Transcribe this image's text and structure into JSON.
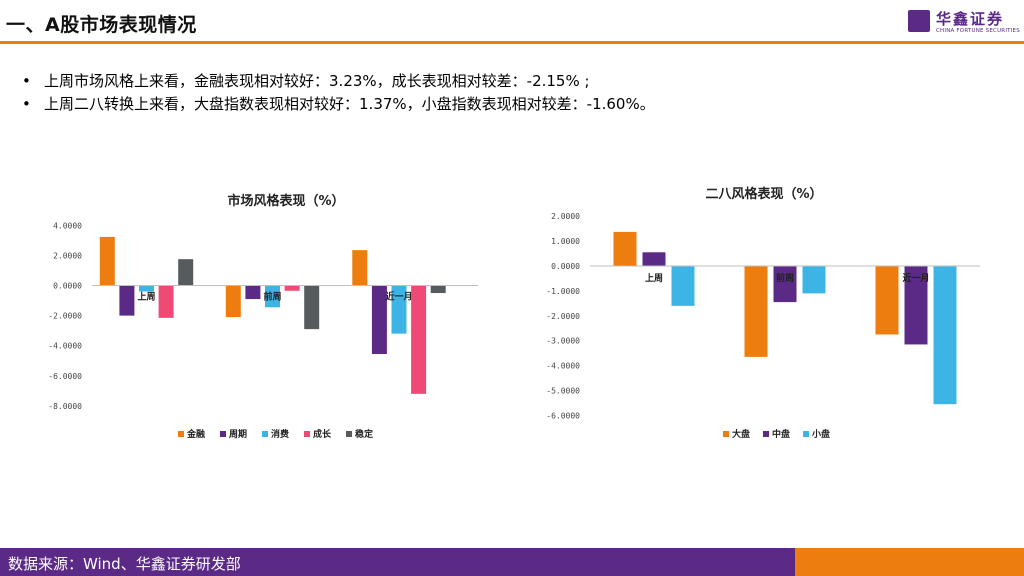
{
  "header": {
    "title": "一、A股市场表现情况",
    "logo_name": "华鑫证券",
    "logo_sub": "CHINA FORTUNE SECURITIES"
  },
  "bullets": [
    "上周市场风格上来看，金融表现相对较好：3.23%，成长表现相对较差：-2.15% ;",
    "上周二八转换上来看，大盘指数表现相对较好：1.37%，小盘指数表现相对较差：-1.60%。"
  ],
  "footer": {
    "source": "数据来源：Wind、华鑫证券研发部"
  },
  "colors": {
    "accent": "#ed7d0e",
    "brand": "#5b2a86"
  },
  "chart_data": [
    {
      "type": "bar",
      "title": "市场风格表现（%）",
      "categories": [
        "上周",
        "前周",
        "近一月"
      ],
      "series": [
        {
          "name": "金融",
          "color": "#ed7d0e",
          "values": [
            3.23,
            -2.1,
            2.35
          ]
        },
        {
          "name": "周期",
          "color": "#5b2a86",
          "values": [
            -2.0,
            -0.9,
            -4.55
          ]
        },
        {
          "name": "消费",
          "color": "#3cb4e6",
          "values": [
            -0.4,
            -1.45,
            -3.2
          ]
        },
        {
          "name": "成长",
          "color": "#ef4a75",
          "values": [
            -2.15,
            -0.35,
            -7.2
          ]
        },
        {
          "name": "稳定",
          "color": "#575b5e",
          "values": [
            1.75,
            -2.9,
            -0.5
          ]
        }
      ],
      "yticks": [
        "4.0000",
        "2.0000",
        "0.0000",
        "-2.0000",
        "-4.0000",
        "-6.0000",
        "-8.0000"
      ],
      "ylim": [
        -8,
        4
      ],
      "legend_position": "bottom"
    },
    {
      "type": "bar",
      "title": "二八风格表现（%）",
      "categories": [
        "上周",
        "前周",
        "近一月"
      ],
      "series": [
        {
          "name": "大盘",
          "color": "#ed7d0e",
          "values": [
            1.37,
            -3.65,
            -2.75
          ]
        },
        {
          "name": "中盘",
          "color": "#5b2a86",
          "values": [
            0.55,
            -1.45,
            -3.15
          ]
        },
        {
          "name": "小盘",
          "color": "#3cb4e6",
          "values": [
            -1.6,
            -1.1,
            -5.55
          ]
        }
      ],
      "yticks": [
        "2.0000",
        "1.0000",
        "0.0000",
        "-1.0000",
        "-2.0000",
        "-3.0000",
        "-4.0000",
        "-5.0000",
        "-6.0000"
      ],
      "ylim": [
        -6,
        2
      ],
      "legend_position": "bottom"
    }
  ]
}
